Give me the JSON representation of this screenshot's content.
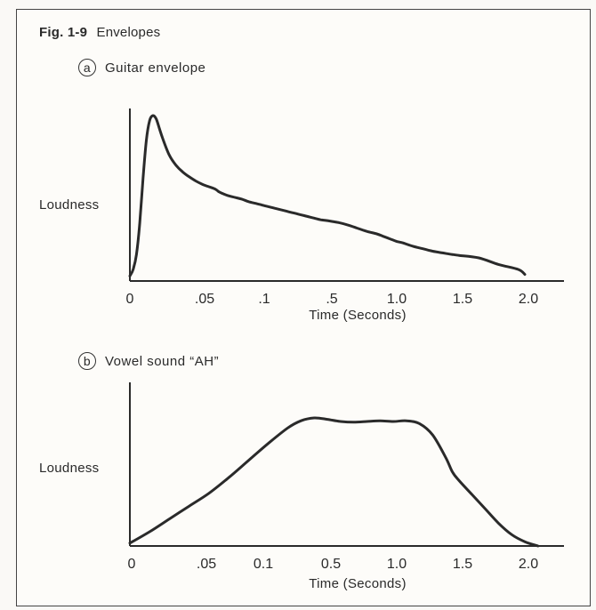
{
  "figure": {
    "number": "Fig. 1-9",
    "title": "Envelopes"
  },
  "colors": {
    "ink": "#2a2a2a",
    "paper": "#fdfcf9"
  },
  "chart_data": [
    {
      "type": "line",
      "panel_letter": "a",
      "title": "Guitar envelope",
      "ylabel": "Loudness",
      "xlabel": "Time (Seconds)",
      "x_ticks": [
        "0",
        ".05",
        ".1",
        ".5",
        "1.0",
        "1.5",
        "2.0"
      ],
      "y_ticks_shown": false,
      "grid": false,
      "series": [
        {
          "x_tick_position": [
            0,
            0.05,
            0.1,
            0.15,
            0.2,
            0.25,
            0.3,
            0.35,
            0.4,
            0.45,
            0.5,
            0.6,
            0.7,
            0.8,
            0.9,
            1.0,
            1.1,
            1.2,
            1.3,
            1.35,
            1.4,
            1.5,
            1.6,
            1.7,
            1.8,
            1.9,
            2.0,
            2.05,
            2.2,
            2.35,
            2.5,
            2.65,
            2.8,
            2.9,
            3.0,
            3.15,
            3.3,
            3.45,
            3.6,
            3.75,
            3.85,
            3.95,
            4.05,
            4.15,
            4.3,
            4.45,
            4.6,
            4.75,
            4.9,
            5.0,
            5.3,
            5.6,
            5.9,
            6.0
          ],
          "loudness": [
            0.03,
            0.07,
            0.16,
            0.35,
            0.62,
            0.85,
            0.97,
            1.0,
            0.98,
            0.92,
            0.86,
            0.76,
            0.7,
            0.66,
            0.63,
            0.605,
            0.585,
            0.57,
            0.555,
            0.54,
            0.53,
            0.515,
            0.505,
            0.495,
            0.48,
            0.47,
            0.46,
            0.455,
            0.44,
            0.425,
            0.41,
            0.395,
            0.38,
            0.37,
            0.365,
            0.355,
            0.34,
            0.32,
            0.3,
            0.285,
            0.27,
            0.255,
            0.24,
            0.23,
            0.21,
            0.195,
            0.18,
            0.17,
            0.16,
            0.155,
            0.14,
            0.1,
            0.07,
            0.04
          ]
        }
      ]
    },
    {
      "type": "line",
      "panel_letter": "b",
      "title": "Vowel sound “AH”",
      "ylabel": "Loudness",
      "xlabel": "Time (Seconds)",
      "x_ticks": [
        "0",
        ".05",
        "0.1",
        "0.5",
        "1.0",
        "1.5",
        "2.0"
      ],
      "y_ticks_shown": false,
      "grid": false,
      "series": [
        {
          "x_tick_position": [
            0,
            0.3,
            0.6,
            0.9,
            1.2,
            1.5,
            1.8,
            2.1,
            2.4,
            2.6,
            2.8,
            3.0,
            3.2,
            3.4,
            3.6,
            3.8,
            4.0,
            4.2,
            4.4,
            4.6,
            4.8,
            4.9,
            5.0,
            5.2,
            5.4,
            5.6,
            5.8,
            6.0,
            6.2
          ],
          "loudness": [
            0.02,
            0.1,
            0.19,
            0.28,
            0.37,
            0.48,
            0.6,
            0.72,
            0.83,
            0.88,
            0.9,
            0.89,
            0.875,
            0.87,
            0.875,
            0.88,
            0.875,
            0.88,
            0.86,
            0.78,
            0.62,
            0.52,
            0.46,
            0.36,
            0.26,
            0.16,
            0.08,
            0.03,
            0.0
          ]
        }
      ]
    }
  ]
}
